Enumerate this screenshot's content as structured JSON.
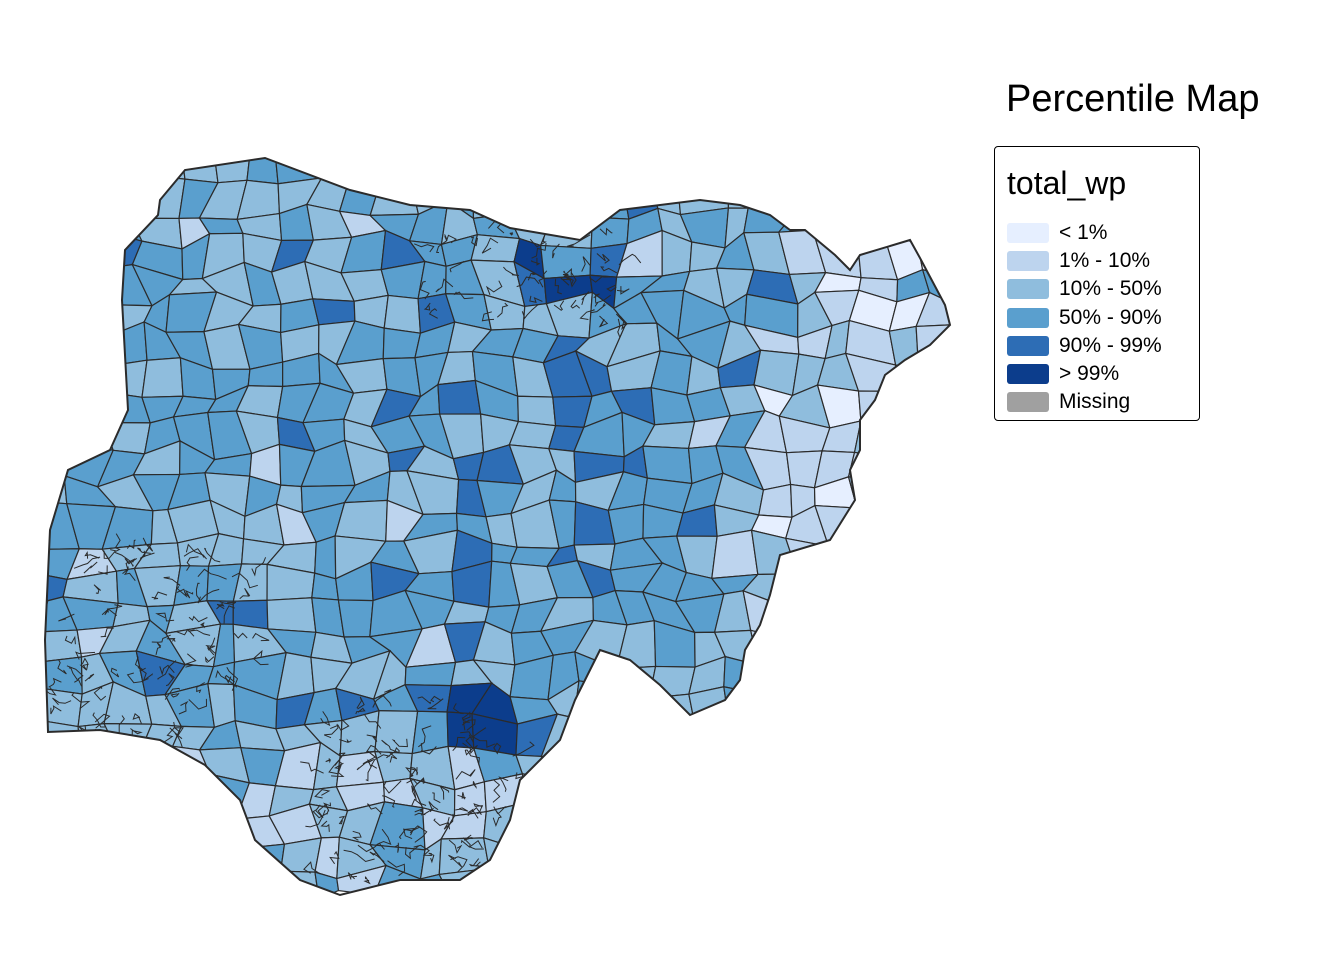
{
  "title": "Percentile Map",
  "legend": {
    "title": "total_wp",
    "items": [
      {
        "label": "< 1%",
        "color": "#e6efff"
      },
      {
        "label": "1% - 10%",
        "color": "#bdd4ee"
      },
      {
        "label": "10% - 50%",
        "color": "#8fbddd"
      },
      {
        "label": "50% - 90%",
        "color": "#5a9fce"
      },
      {
        "label": "90% - 99%",
        "color": "#2d6db5"
      },
      {
        "label": "> 99%",
        "color": "#0c3d8c"
      },
      {
        "label": "Missing",
        "color": "#a0a0a0"
      }
    ]
  },
  "colors": {
    "border": "#2b2b2b",
    "background": "#ffffff"
  }
}
